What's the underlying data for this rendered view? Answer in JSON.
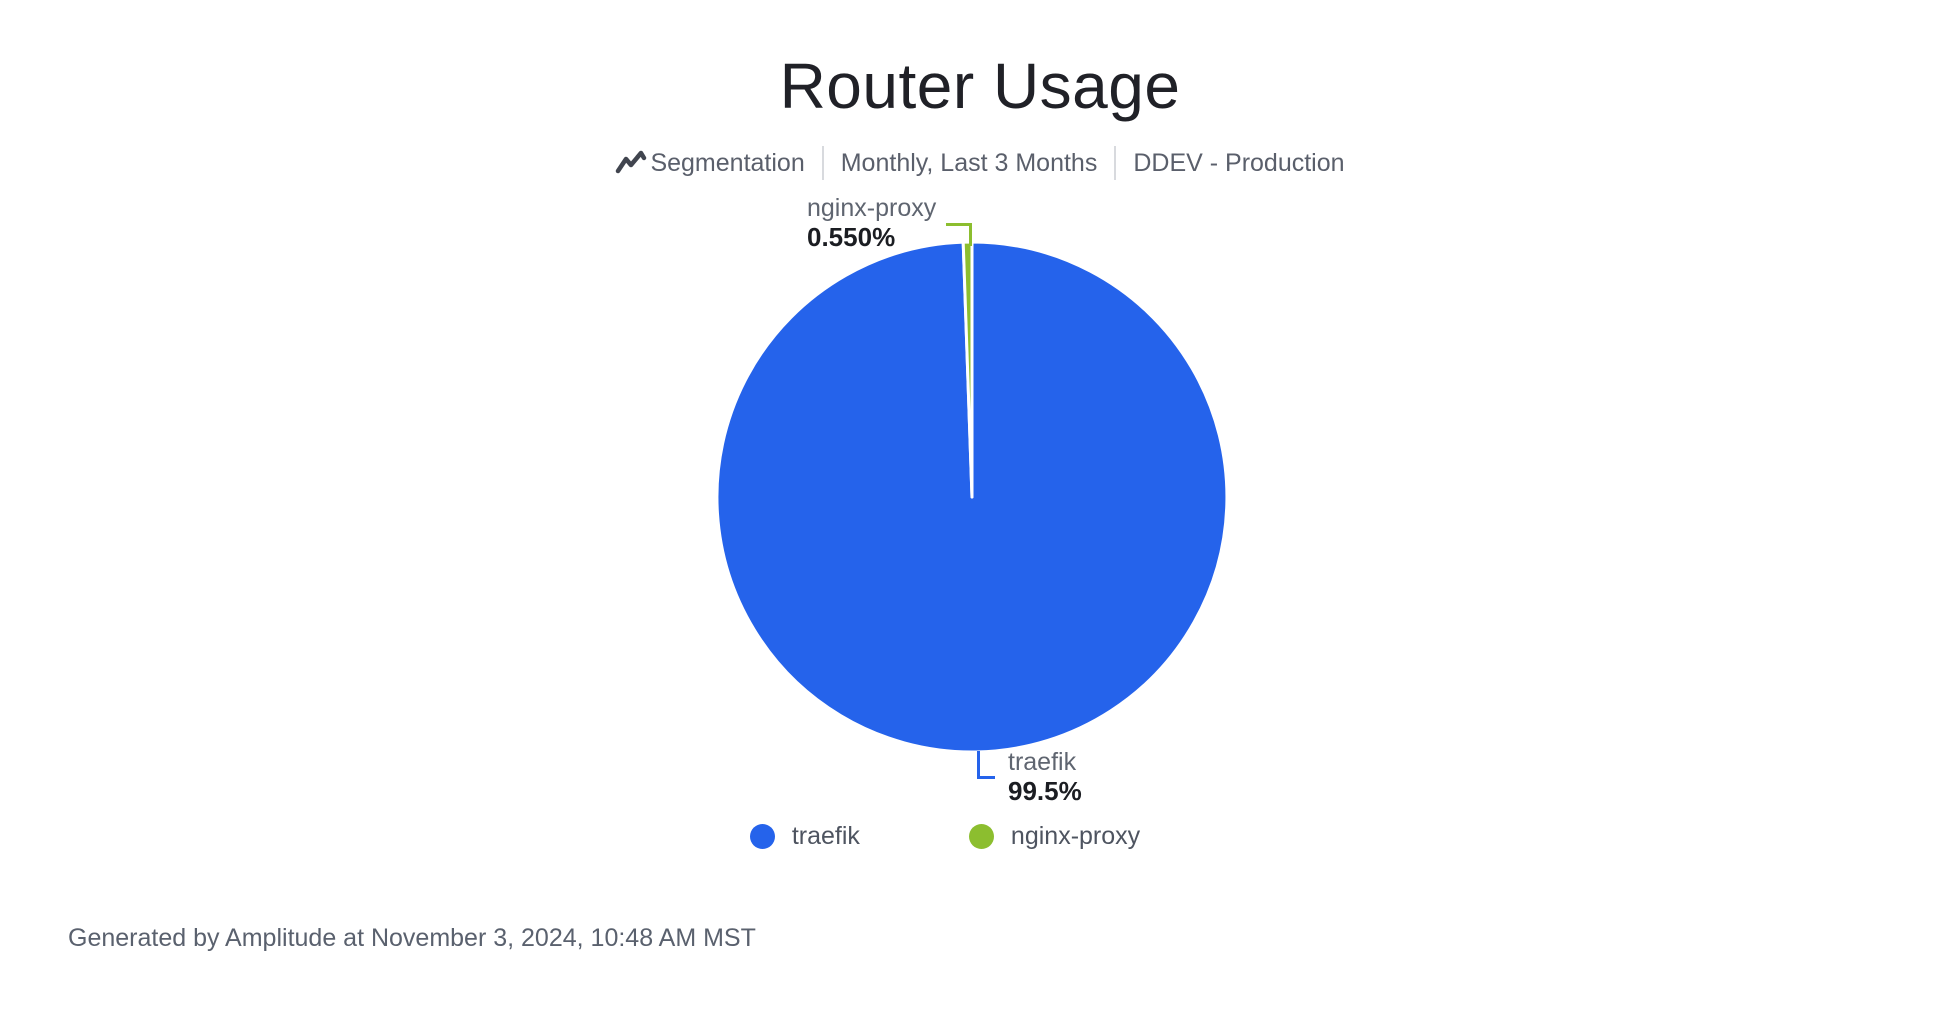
{
  "page": {
    "title": "Router Usage"
  },
  "subtitle": {
    "chart_type": "Segmentation",
    "interval_range": "Monthly, Last 3 Months",
    "project": "DDEV - Production"
  },
  "chart_data": {
    "type": "pie",
    "title": "Router Usage",
    "slices": [
      {
        "label": "traefik",
        "value": 99.5,
        "display_pct": "99.5%",
        "color": "#2563EB"
      },
      {
        "label": "nginx-proxy",
        "value": 0.55,
        "display_pct": "0.550%",
        "color": "#8CBE2F"
      }
    ],
    "start_angle_deg": 0,
    "direction": "clockwise",
    "slice_gap_color": "#FFFFFF",
    "labels": "outside-callout",
    "legend_position": "bottom-center"
  },
  "footer": {
    "note": "Generated by Amplitude at November 3, 2024, 10:48 AM MST"
  }
}
